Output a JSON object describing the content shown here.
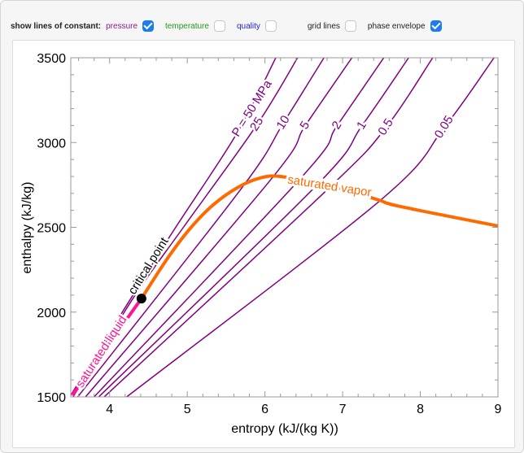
{
  "controls": {
    "lead_label": "show lines of constant:",
    "items": [
      {
        "label": "pressure",
        "checked": true,
        "color": "#8b1c8b"
      },
      {
        "label": "temperature",
        "checked": false,
        "color": "#1f9a1f"
      },
      {
        "label": "quality",
        "checked": false,
        "color": "#2323e0"
      },
      {
        "label": "grid lines",
        "checked": false,
        "color": "#222222"
      },
      {
        "label": "phase envelope",
        "checked": true,
        "color": "#222222"
      }
    ]
  },
  "chart_data": {
    "type": "line",
    "xlabel": "entropy (kJ/(kg K))",
    "ylabel": "enthalpy (kJ/kg)",
    "xlim": [
      3.5,
      9
    ],
    "ylim": [
      1500,
      3500
    ],
    "xticks": [
      4,
      5,
      6,
      7,
      8,
      9
    ],
    "yticks": [
      1500,
      2000,
      2500,
      3000,
      3500
    ],
    "grid": false,
    "isobar_color": "#800080",
    "isobars": [
      {
        "label": "P = 50 MPa",
        "points": [
          [
            3.5,
            1510
          ],
          [
            4.72,
            2407
          ],
          [
            5.62,
            3040
          ],
          [
            6.14,
            3500
          ]
        ],
        "label_at": [
          5.62,
          3040
        ]
      },
      {
        "label": "25",
        "points": [
          [
            3.53,
            1500
          ],
          [
            4.3,
            2080
          ],
          [
            4.95,
            2500
          ],
          [
            5.9,
            3107
          ],
          [
            6.42,
            3500
          ]
        ],
        "label_at": [
          5.9,
          3107
        ]
      },
      {
        "label": "10",
        "points": [
          [
            3.59,
            1500
          ],
          [
            5.69,
            2725
          ],
          [
            6.24,
            3117
          ],
          [
            6.76,
            3500
          ]
        ],
        "label_at": [
          6.24,
          3117
        ]
      },
      {
        "label": "5",
        "points": [
          [
            3.69,
            1500
          ],
          [
            6.09,
            2790
          ],
          [
            6.52,
            3100
          ],
          [
            7.12,
            3500
          ]
        ],
        "label_at": [
          6.52,
          3100
        ]
      },
      {
        "label": "2",
        "points": [
          [
            3.8,
            1500
          ],
          [
            6.48,
            2800
          ],
          [
            6.93,
            3100
          ],
          [
            7.53,
            3500
          ]
        ],
        "label_at": [
          6.93,
          3100
        ]
      },
      {
        "label": "1",
        "points": [
          [
            3.86,
            1500
          ],
          [
            6.67,
            2750
          ],
          [
            7.25,
            3100
          ],
          [
            7.85,
            3500
          ]
        ],
        "label_at": [
          7.25,
          3100
        ]
      },
      {
        "label": "0.5",
        "points": [
          [
            3.93,
            1500
          ],
          [
            6.82,
            2730
          ],
          [
            7.56,
            3090
          ],
          [
            8.16,
            3500
          ]
        ],
        "label_at": [
          7.56,
          3090
        ]
      },
      {
        "label": "0.05",
        "points": [
          [
            4.22,
            1500
          ],
          [
            7.48,
            2657
          ],
          [
            8.31,
            3090
          ],
          [
            8.95,
            3500
          ]
        ],
        "label_at": [
          8.31,
          3090
        ]
      }
    ],
    "saturated_vapor": {
      "label": "saturated vapor",
      "color": "#ff6a00",
      "points": [
        [
          4.41,
          2080
        ],
        [
          4.75,
          2320
        ],
        [
          5.04,
          2495
        ],
        [
          5.33,
          2631
        ],
        [
          5.65,
          2735
        ],
        [
          5.94,
          2791
        ],
        [
          6.21,
          2799
        ],
        [
          6.85,
          2745
        ],
        [
          7.45,
          2663
        ],
        [
          7.74,
          2623
        ],
        [
          9.0,
          2508
        ]
      ],
      "label_at": [
        6.83,
        2740
      ]
    },
    "saturated_liquid": {
      "label": "saturated liquid",
      "color": "#ff1493",
      "points": [
        [
          3.52,
          1510
        ],
        [
          4.41,
          2080
        ]
      ],
      "label_at": [
        3.9,
        1765
      ]
    },
    "critical_point": {
      "label": "critical point",
      "s": 4.41,
      "h": 2080
    }
  }
}
